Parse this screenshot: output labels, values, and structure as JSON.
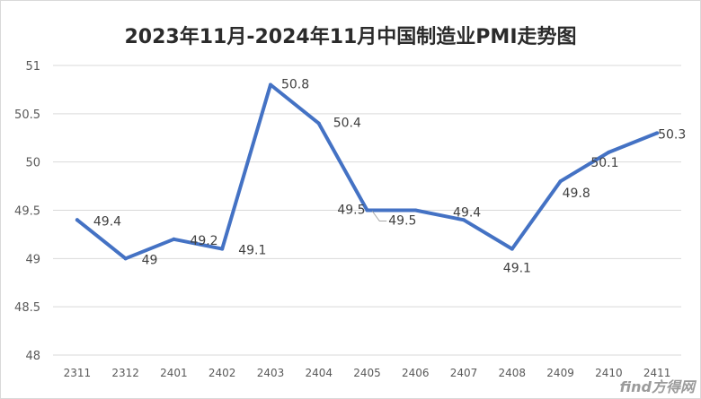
{
  "chart_data": {
    "type": "line",
    "title": "2023年11月-2024年11月中国制造业PMI走势图",
    "xlabel": "",
    "ylabel": "",
    "categories": [
      "2311",
      "2312",
      "2401",
      "2402",
      "2403",
      "2404",
      "2405",
      "2406",
      "2407",
      "2408",
      "2409",
      "2410",
      "2411"
    ],
    "series": [
      {
        "values": [
          49.4,
          49.0,
          49.2,
          49.1,
          50.8,
          50.4,
          49.5,
          49.5,
          49.4,
          49.1,
          49.8,
          50.1,
          50.3
        ],
        "color": "#4472c4",
        "data_labels": [
          "49.4",
          "49",
          "49.2",
          "49.1",
          "50.8",
          "50.4",
          "49.5",
          "49.5",
          "49.4",
          "49.1",
          "49.8",
          "50.1",
          "50.3"
        ]
      }
    ],
    "ylim": [
      48,
      51
    ],
    "yticks": [
      "48",
      "48.5",
      "49",
      "49.5",
      "50",
      "50.5",
      "51"
    ],
    "grid": true,
    "legend": "none"
  },
  "watermark": {
    "text": "find方得网"
  }
}
